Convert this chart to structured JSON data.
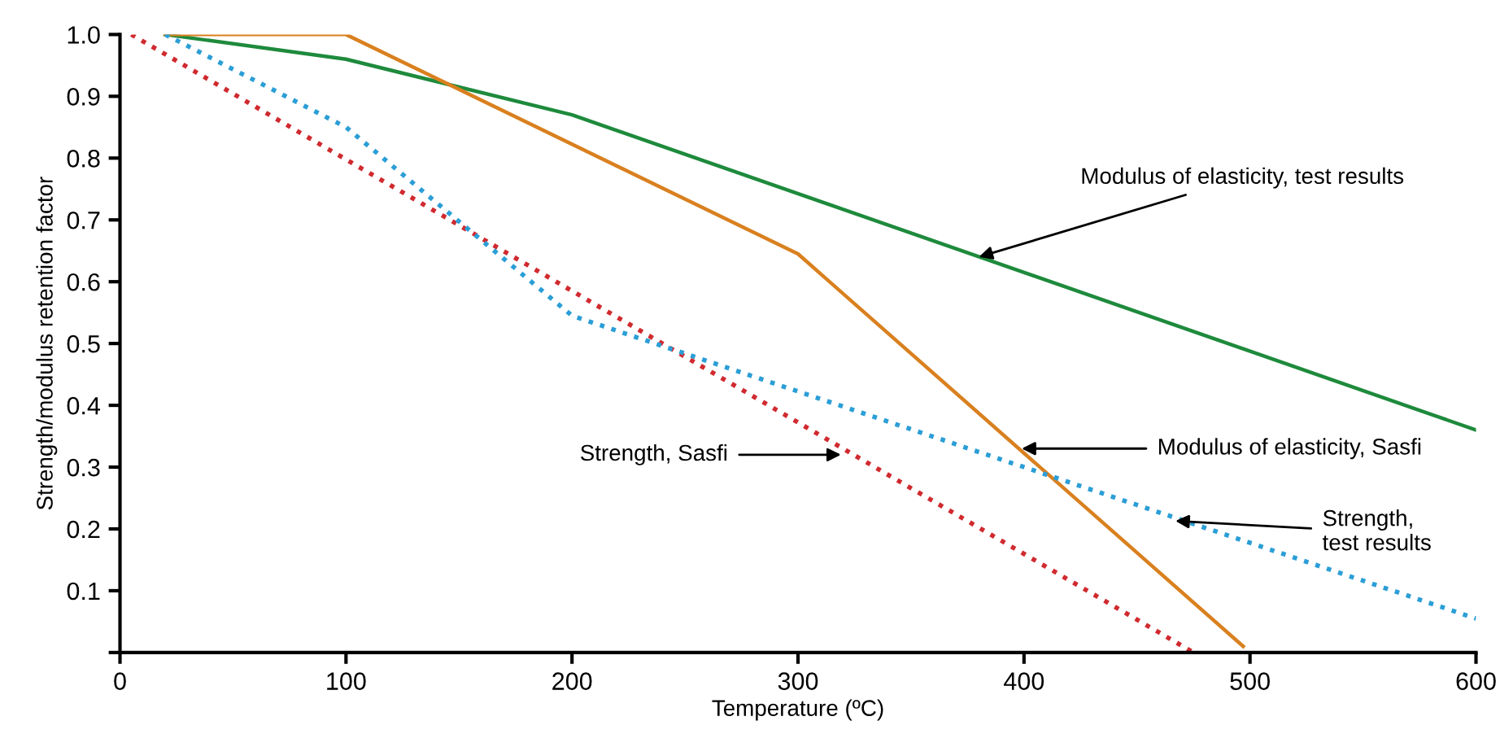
{
  "chart_data": {
    "type": "line",
    "xlabel": "Temperature (ºC)",
    "ylabel": "Strength/modulus retention factor",
    "xlim": [
      0,
      600
    ],
    "xticks": [
      0,
      100,
      200,
      300,
      400,
      500,
      600
    ],
    "ylim": [
      0,
      1.0
    ],
    "yticks": [
      {
        "value": 0,
        "label": null
      },
      0.1,
      0.2,
      0.3,
      0.4,
      0.5,
      0.6,
      0.7,
      0.8,
      0.9,
      {
        "value": 1,
        "label": "1.0"
      }
    ],
    "grid": false,
    "legend": false,
    "marker": "none",
    "series": [
      {
        "x": [
          20,
          100,
          200,
          600
        ],
        "values": [
          1.0,
          0.96,
          0.87,
          0.36
        ],
        "color": "#1e8a3c",
        "line_style": "solid"
      },
      {
        "x": [
          20,
          100,
          300,
          497
        ],
        "values": [
          1.0,
          1.0,
          0.645,
          0.01
        ],
        "color": "#d9801f",
        "line_style": "solid"
      },
      {
        "x": [
          5,
          475
        ],
        "values": [
          1.0,
          0.0
        ],
        "color": "#d02a2f",
        "line_style": "dotted"
      },
      {
        "x": [
          20,
          100,
          200,
          600
        ],
        "values": [
          1.0,
          0.85,
          0.545,
          0.055
        ],
        "color": "#2b9ed6",
        "line_style": "dotted"
      }
    ],
    "annotations": [
      {
        "text": "Modulus of elasticity, test results",
        "x": 380,
        "y": 0.64
      },
      {
        "text": "Modulus of elasticity, Sasfi",
        "x": 399,
        "y": 0.33
      },
      {
        "text": "Strength, Sasfi",
        "x": 319,
        "y": 0.32
      },
      {
        "text": "Strength,\ntest results",
        "x": 467,
        "y": 0.213
      }
    ]
  }
}
